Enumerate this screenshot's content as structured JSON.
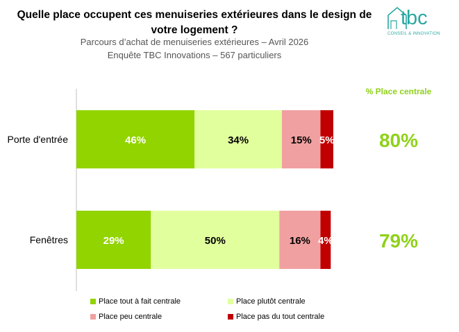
{
  "header": {
    "title": "Quelle place occupent ces menuiseries extérieures dans le design de votre logement ?",
    "subtitle1": "Parcours d’achat de menuiseries extérieures – Avril 2026",
    "subtitle2": "Enquête TBC Innovations – 567 particuliers"
  },
  "logo": {
    "text": "tbc",
    "tagline": "CONSEIL & INNOVATION"
  },
  "colors": {
    "series": [
      "#92d400",
      "#e2ff9e",
      "#f0a0a0",
      "#c00000"
    ],
    "kpi": "#8fd11a",
    "axis": "#bfbfbf"
  },
  "chart_data": {
    "type": "bar",
    "orientation": "horizontal",
    "stacked": true,
    "categories": [
      "Porte d'entrée",
      "Fenêtres"
    ],
    "series": [
      {
        "name": "Place tout à fait centrale",
        "values": [
          46,
          29
        ],
        "labels": [
          "46%",
          "29%"
        ]
      },
      {
        "name": "Place plutôt centrale",
        "values": [
          34,
          50
        ],
        "labels": [
          "34%",
          "50%"
        ]
      },
      {
        "name": "Place peu centrale",
        "values": [
          15,
          16
        ],
        "labels": [
          "15%",
          "16%"
        ]
      },
      {
        "name": "Place pas du tout centrale",
        "values": [
          5,
          4
        ],
        "labels": [
          "5%",
          "4%"
        ]
      }
    ],
    "xlim": [
      0,
      100
    ],
    "side_column": {
      "header": "% Place centrale",
      "values": [
        "80%",
        "79%"
      ]
    },
    "legend_position": "bottom"
  }
}
